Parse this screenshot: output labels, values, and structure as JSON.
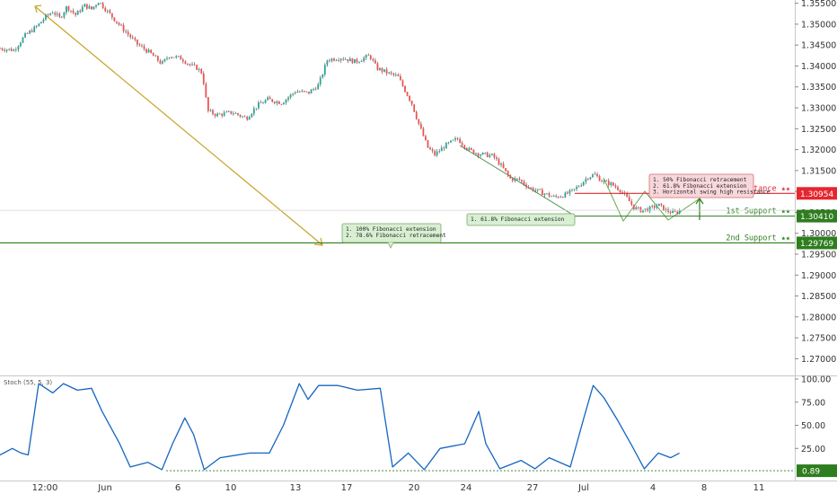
{
  "chart_data": [
    {
      "type": "candlestick",
      "title": "",
      "price_axis": {
        "ticks": [
          "1.35500",
          "1.35000",
          "1.34500",
          "1.34000",
          "1.33500",
          "1.33000",
          "1.32500",
          "1.32000",
          "1.31500",
          "1.31000",
          "1.30500",
          "1.30000",
          "1.29500",
          "1.29000",
          "1.28500",
          "1.28000",
          "1.27500",
          "1.27000"
        ],
        "ylim": [
          1.266,
          1.3578
        ]
      },
      "date_axis": {
        "ticks": [
          "12:00",
          "Jun",
          "6",
          "10",
          "13",
          "17",
          "20",
          "24",
          "27",
          "Jul",
          "4",
          "8",
          "11"
        ]
      },
      "price_path": [
        [
          0,
          1.3442
        ],
        [
          0.8,
          1.3438
        ],
        [
          1.4,
          1.3472
        ],
        [
          2.1,
          1.3495
        ],
        [
          2.6,
          1.3518
        ],
        [
          3,
          1.353
        ],
        [
          3.4,
          1.3514
        ],
        [
          3.8,
          1.3542
        ],
        [
          4.3,
          1.3522
        ],
        [
          4.8,
          1.3545
        ],
        [
          5.2,
          1.3536
        ],
        [
          5.6,
          1.3555
        ],
        [
          6.3,
          1.3521
        ],
        [
          7,
          1.3488
        ],
        [
          7.8,
          1.3452
        ],
        [
          8.5,
          1.3432
        ],
        [
          9.2,
          1.3405
        ],
        [
          9.6,
          1.3425
        ],
        [
          10.3,
          1.3418
        ],
        [
          10.8,
          1.3402
        ],
        [
          11.2,
          1.3395
        ],
        [
          11.5,
          1.3382
        ],
        [
          11.8,
          1.3292
        ],
        [
          12.3,
          1.3283
        ],
        [
          13.2,
          1.3289
        ],
        [
          14,
          1.3275
        ],
        [
          14.6,
          1.3305
        ],
        [
          15.2,
          1.332
        ],
        [
          16,
          1.3312
        ],
        [
          16.8,
          1.334
        ],
        [
          17.5,
          1.3335
        ],
        [
          18.1,
          1.3355
        ],
        [
          18.6,
          1.3415
        ],
        [
          19.4,
          1.342
        ],
        [
          20.2,
          1.341
        ],
        [
          21,
          1.3425
        ],
        [
          21.4,
          1.3395
        ],
        [
          22.1,
          1.3382
        ],
        [
          22.6,
          1.3375
        ],
        [
          23.4,
          1.331
        ],
        [
          23.8,
          1.326
        ],
        [
          24.3,
          1.3205
        ],
        [
          24.7,
          1.3188
        ],
        [
          25.3,
          1.321
        ],
        [
          26,
          1.3226
        ],
        [
          26.6,
          1.32
        ],
        [
          27.2,
          1.319
        ],
        [
          28,
          1.3185
        ],
        [
          28.5,
          1.316
        ],
        [
          29,
          1.313
        ],
        [
          29.5,
          1.3128
        ],
        [
          30.1,
          1.3108
        ],
        [
          30.8,
          1.3097
        ],
        [
          31.5,
          1.3086
        ],
        [
          32.1,
          1.3092
        ],
        [
          32.6,
          1.3103
        ],
        [
          33,
          1.3118
        ],
        [
          33.4,
          1.3135
        ],
        [
          33.8,
          1.314
        ],
        [
          34.2,
          1.3125
        ],
        [
          34.7,
          1.3118
        ],
        [
          35.2,
          1.3105
        ],
        [
          35.6,
          1.3085
        ],
        [
          36,
          1.3062
        ],
        [
          36.4,
          1.3055
        ],
        [
          36.9,
          1.3058
        ],
        [
          37.4,
          1.3068
        ],
        [
          37.8,
          1.3055
        ],
        [
          38.3,
          1.3048
        ],
        [
          38.7,
          1.3055
        ]
      ],
      "levels": [
        {
          "name": "1st Resistance",
          "value": 1.30954,
          "label": "1st Resistance ★★",
          "badge": "1.30954",
          "color": "#e5262f"
        },
        {
          "name": "1st Support",
          "value": 1.3041,
          "label": "1st Support ★★",
          "badge": "1.30410",
          "color": "#2e7d1e"
        },
        {
          "name": "2nd Support",
          "value": 1.29769,
          "label": "2nd Support ★★",
          "badge": "1.29769",
          "color": "#2e7d1e"
        }
      ],
      "annotations": [
        {
          "lines": [
            "1. 50% Fibonacci retracement",
            "2. 61.8% Fibonacci extension",
            "3. Horizontal swing high resistance"
          ],
          "color": "#f8d7da"
        },
        {
          "lines": [
            "1. 61.8% Fibonacci extension"
          ],
          "color": "#d8efd2"
        },
        {
          "lines": [
            "1. 100% Fibonacci extension",
            "2. 78.6% Fibonacci retracement"
          ],
          "color": "#d8efd2"
        }
      ],
      "colors": {
        "up": "#26a69a",
        "down": "#ef5350",
        "wick": "#444444",
        "trend": "#c9a227",
        "stoch": "#1565c0"
      }
    },
    {
      "type": "line",
      "indicator_label": "Stoch (55, 5, 3)",
      "ylim": [
        0,
        100
      ],
      "y_ticks": [
        "100.00",
        "75.00",
        "50.00",
        "25.00"
      ],
      "current_value": "0.89",
      "series": [
        {
          "values": [
            [
              0,
              18
            ],
            [
              0.7,
              25
            ],
            [
              1.2,
              20
            ],
            [
              1.6,
              18
            ],
            [
              2.2,
              95
            ],
            [
              3,
              85
            ],
            [
              3.6,
              95
            ],
            [
              4.4,
              88
            ],
            [
              5.2,
              90
            ],
            [
              5.8,
              65
            ],
            [
              6.8,
              30
            ],
            [
              7.4,
              5
            ],
            [
              8.4,
              10
            ],
            [
              9.2,
              2
            ],
            [
              9.8,
              30
            ],
            [
              10.5,
              58
            ],
            [
              11,
              40
            ],
            [
              11.6,
              2
            ],
            [
              12.5,
              15
            ],
            [
              14.2,
              20
            ],
            [
              15.3,
              20
            ],
            [
              16.1,
              50
            ],
            [
              17,
              95
            ],
            [
              17.5,
              78
            ],
            [
              18.1,
              93
            ],
            [
              19.2,
              93
            ],
            [
              20.3,
              88
            ],
            [
              21.6,
              90
            ],
            [
              22.3,
              5
            ],
            [
              23.2,
              20
            ],
            [
              24.1,
              2
            ],
            [
              25,
              25
            ],
            [
              26.4,
              30
            ],
            [
              27.2,
              65
            ],
            [
              27.6,
              30
            ],
            [
              28.4,
              3
            ],
            [
              29.6,
              12
            ],
            [
              30.4,
              3
            ],
            [
              31.2,
              15
            ],
            [
              32.4,
              5
            ],
            [
              33.2,
              60
            ],
            [
              33.7,
              93
            ],
            [
              34.3,
              80
            ],
            [
              35.1,
              55
            ],
            [
              35.9,
              28
            ],
            [
              36.6,
              3
            ],
            [
              37.4,
              20
            ],
            [
              38.1,
              15
            ],
            [
              38.6,
              20
            ]
          ]
        }
      ]
    }
  ]
}
